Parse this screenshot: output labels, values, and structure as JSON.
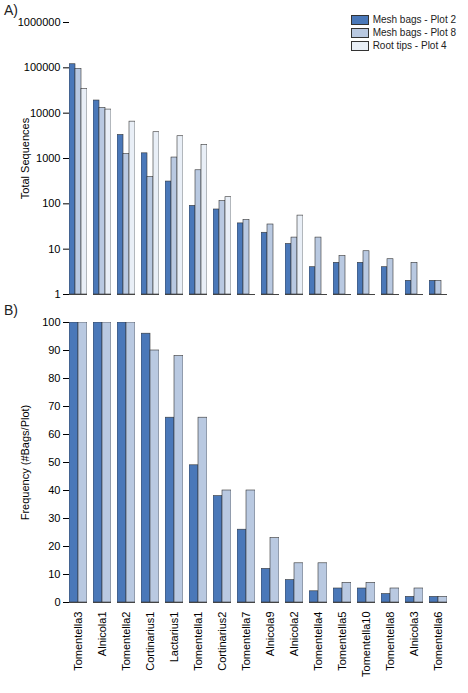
{
  "chart_data": [
    {
      "type": "bar",
      "title": "A)",
      "y_label": "Total Sequences",
      "log": "y",
      "legend": "top-right",
      "tick_labels": "y",
      "categories": [
        "Tomentella3",
        "Alnicola1",
        "Tomentella2",
        "Cortinarius1",
        "Lactarius1",
        "Tomentella1",
        "Cortinarius2",
        "Tomentella7",
        "Alnicola9",
        "Alnicola2",
        "Tomentella4",
        "Tomentella5",
        "Tomentella10",
        "Tomentella8",
        "Alnicola3",
        "Tomentella6"
      ],
      "series": [
        {
          "name": "Mesh bags - Plot 2",
          "color": "#4a78b9",
          "values": [
            120000,
            19000,
            3300,
            1300,
            310,
            90,
            75,
            37,
            23,
            13,
            4,
            5,
            5,
            4,
            2,
            2
          ]
        },
        {
          "name": "Mesh bags - Plot 8",
          "color": "#b9c9e1",
          "values": [
            95000,
            13000,
            1250,
            390,
            1050,
            550,
            115,
            44,
            35,
            18,
            18,
            7,
            9,
            6,
            5,
            2
          ]
        },
        {
          "name": "Root tips - Plot 4",
          "color": "#e9eff7",
          "values": [
            34000,
            12000,
            6500,
            3800,
            3100,
            2000,
            140,
            null,
            null,
            55,
            null,
            null,
            null,
            null,
            null,
            null
          ]
        }
      ],
      "ylim": [
        1,
        1000000
      ],
      "yticks": [
        1,
        10,
        100,
        1000,
        10000,
        100000,
        1000000
      ]
    },
    {
      "type": "bar",
      "title": "B)",
      "y_label": "Frequency (#Bags/Plot)",
      "categories": [
        "Tomentella3",
        "Alnicola1",
        "Tomentella2",
        "Cortinarius1",
        "Lactarius1",
        "Tomentella1",
        "Cortinarius2",
        "Tomentella7",
        "Alnicola9",
        "Alnicola2",
        "Tomentella4",
        "Tomentella5",
        "Tomentella10",
        "Tomentella8",
        "Alnicola3",
        "Tomentella6"
      ],
      "series": [
        {
          "name": "Mesh bags - Plot 2",
          "color": "#4a78b9",
          "values": [
            100,
            100,
            100,
            96,
            66,
            49,
            38,
            26,
            12,
            8,
            4,
            5,
            5,
            3,
            2,
            2
          ]
        },
        {
          "name": "Mesh bags - Plot 8",
          "color": "#b9c9e1",
          "values": [
            100,
            100,
            100,
            90,
            88,
            66,
            40,
            40,
            23,
            14,
            14,
            7,
            7,
            5,
            5,
            2
          ]
        }
      ],
      "ylim": [
        0,
        100
      ],
      "yticks": [
        0,
        10,
        20,
        30,
        40,
        50,
        60,
        70,
        80,
        90,
        100
      ]
    }
  ]
}
